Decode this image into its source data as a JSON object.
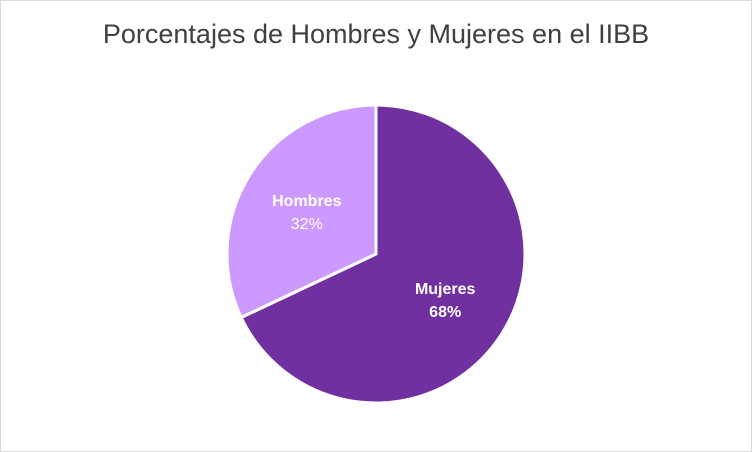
{
  "chart_data": {
    "type": "pie",
    "title": "Porcentajes de Hombres y Mujeres en el IIBB",
    "slices": [
      {
        "label": "Mujeres",
        "value": 68,
        "value_label": "68%",
        "color": "#7030a0",
        "label_color": "#ffffff"
      },
      {
        "label": "Hombres",
        "value": 32,
        "value_label": "32%",
        "color": "#cc99ff",
        "label_color": "#ffffff"
      }
    ],
    "start_angle_deg": 0,
    "direction": "clockwise",
    "legend": "none",
    "slice_border_color": "#ffffff"
  }
}
